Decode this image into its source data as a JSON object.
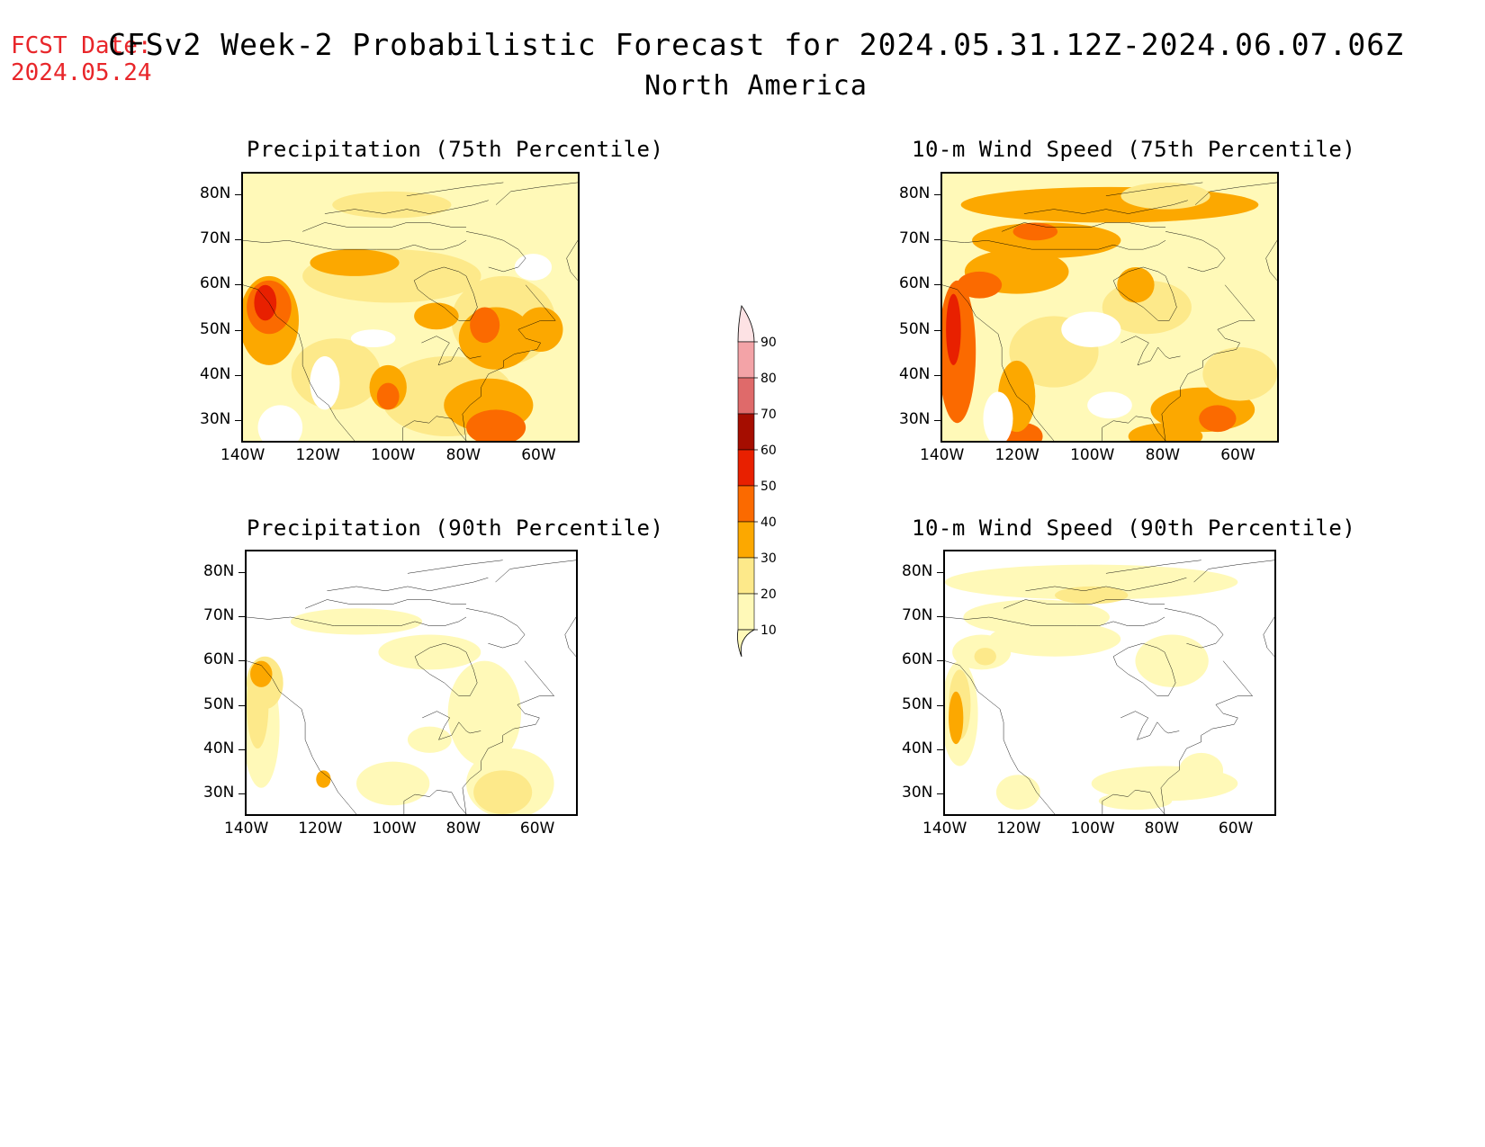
{
  "header": {
    "fcst_label": "FCST Date:",
    "fcst_date": "2024.05.24",
    "title": "CFSv2 Week-2 Probabilistic Forecast for 2024.05.31.12Z-2024.06.07.06Z",
    "subtitle": "North America"
  },
  "panels": [
    {
      "id": "precip75",
      "title": "Precipitation (75th Percentile)"
    },
    {
      "id": "wind75",
      "title": "10-m Wind Speed (75th Percentile)"
    },
    {
      "id": "precip90",
      "title": "Precipitation (90th Percentile)"
    },
    {
      "id": "wind90",
      "title": "10-m Wind Speed (90th Percentile)"
    }
  ],
  "axes": {
    "lat_labels": [
      "80N",
      "70N",
      "60N",
      "50N",
      "40N",
      "30N"
    ],
    "lon_labels": [
      "140W",
      "120W",
      "100W",
      "80W",
      "60W"
    ]
  },
  "colorbar": {
    "levels": [
      "10",
      "20",
      "30",
      "40",
      "50",
      "60",
      "70",
      "80",
      "90"
    ],
    "colors": [
      "#fff9b8",
      "#fde98a",
      "#fca800",
      "#fb6a00",
      "#e82000",
      "#a50d00",
      "#df6a6a",
      "#f3a3a7",
      "#fde2e4"
    ]
  }
}
